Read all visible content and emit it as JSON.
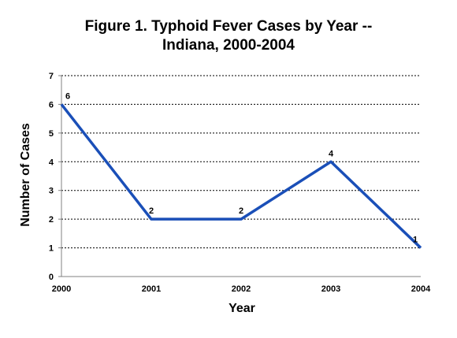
{
  "chart_data": {
    "type": "line",
    "title_lines": [
      "Figure 1.  Typhoid Fever Cases by Year --",
      "Indiana, 2000-2004"
    ],
    "xlabel": "Year",
    "ylabel": "Number of Cases",
    "categories": [
      "2000",
      "2001",
      "2002",
      "2003",
      "2004"
    ],
    "series": [
      {
        "values": [
          6,
          2,
          2,
          4,
          1
        ],
        "data_labels": [
          "6",
          "2",
          "2",
          "4",
          "1"
        ]
      }
    ],
    "ylim": [
      0,
      7
    ],
    "yticks": [
      "0",
      "1",
      "2",
      "3",
      "4",
      "5",
      "6",
      "7"
    ],
    "grid": "horizontal dotted",
    "legend": "none",
    "colors": {
      "line": "#1a4fb8",
      "grid": "#000000",
      "axis": "#808080"
    }
  }
}
